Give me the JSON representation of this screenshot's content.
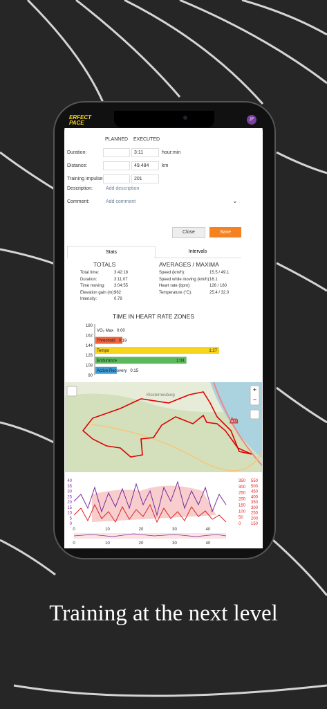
{
  "header": {
    "logo": "ERFECT PACE",
    "avatar": "JF"
  },
  "form": {
    "col_planned": "PLANNED",
    "col_executed": "EXECUTED",
    "rows": [
      {
        "label": "Duration:",
        "executed": "3:11",
        "unit": "hour:min"
      },
      {
        "label": "Distance:",
        "executed": "49.484",
        "unit": "km"
      },
      {
        "label": "Training impulse:",
        "executed": "201"
      }
    ],
    "description_label": "Description:",
    "description_placeholder": "Add description",
    "comment_label": "Comment:",
    "comment_placeholder": "Add comment",
    "close": "Close",
    "save": "Save"
  },
  "tabs": [
    "Stats",
    "Intervals"
  ],
  "totals": {
    "title": "TOTALS",
    "rows": [
      [
        "Total time:",
        "3:42:18"
      ],
      [
        "Duration:",
        "3:11:07"
      ],
      [
        "Time moving:",
        "3:04:55"
      ],
      [
        "Elevation gain (m):",
        "962"
      ],
      [
        "Intensity:",
        "0.79"
      ]
    ]
  },
  "averages": {
    "title": "AVERAGES / MAXIMA",
    "rows": [
      [
        "Speed (km/h):",
        "15.5 / 49.1"
      ],
      [
        "Speed while moving (km/h):",
        "16.1"
      ],
      [
        "Heart rate (bpm):",
        "126 / 160"
      ],
      [
        "Temperature (°C):",
        "25.4 / 32.0"
      ]
    ]
  },
  "hr_zones": {
    "type": "bar",
    "title": "TIME IN HEART RATE ZONES",
    "yticks": [
      180,
      162,
      144,
      126,
      108,
      90
    ],
    "series": [
      {
        "name": "VO₂ Max",
        "color": "#e0e0e0",
        "minutes": 0,
        "value_label": "0:00"
      },
      {
        "name": "Threshold",
        "color": "#f0643c",
        "minutes": 19,
        "value_label": "0:19"
      },
      {
        "name": "Tempo",
        "color": "#f7d51d",
        "minutes": 87,
        "value_label": "1:27"
      },
      {
        "name": "Endurance",
        "color": "#5cb85c",
        "minutes": 64,
        "value_label": "1:04"
      },
      {
        "name": "Active Recovery",
        "color": "#3c9ad6",
        "minutes": 15,
        "value_label": "0:15"
      }
    ]
  },
  "map": {
    "place": "Klosterneuburg",
    "road": "A22"
  },
  "graph": {
    "left_ticks": [
      0,
      5,
      10,
      15,
      20,
      25,
      30,
      35,
      40
    ],
    "right_ticks": [
      0,
      50,
      100,
      150,
      200,
      250,
      300,
      350
    ],
    "right2_ticks": [
      150,
      200,
      250,
      300,
      350,
      400,
      450,
      500,
      550
    ],
    "x_ticks": [
      0,
      10,
      20,
      30,
      40
    ]
  },
  "caption": "Training at the next level"
}
